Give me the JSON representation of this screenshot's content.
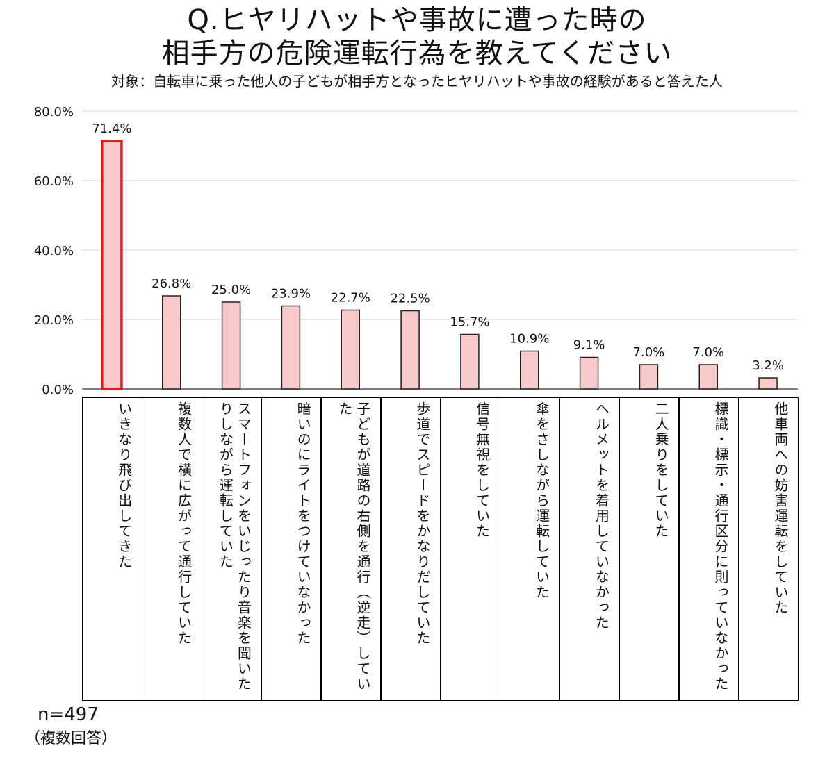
{
  "title_line1": "Q.ヒヤリハットや事故に遭った時の",
  "title_line2": "相手方の危険運転行為を教えてください",
  "subtitle": "対象：自転車に乗った他人の子どもが相手方となったヒヤリハットや事故の経験があると答えた人",
  "sample_size": "n=497",
  "answer_note": "（複数回答）",
  "colors": {
    "bar_fill": "#f7c9c9",
    "bar_stroke": "#222222",
    "highlight_stroke": "#d92020",
    "grid": "#e2e2e2"
  },
  "chart_data": {
    "type": "bar",
    "title": "Q.ヒヤリハットや事故に遭った時の相手方の危険運転行為を教えてください",
    "ylim": [
      0,
      80
    ],
    "yticks": [
      "0.0%",
      "20.0%",
      "40.0%",
      "60.0%",
      "80.0%"
    ],
    "grid": true,
    "categories": [
      "いきなり飛び出してきた",
      "複数人で横に広がって通行していた",
      "スマートフォンをいじったり音楽を聞いたりしながら運転していた",
      "暗いのにライトをつけていなかった",
      "子どもが道路の右側を通行（逆走）していた",
      "歩道でスピードをかなりだしていた",
      "信号無視をしていた",
      "傘をさしながら運転していた",
      "ヘルメットを着用していなかった",
      "二人乗りをしていた",
      "標識・標示・通行区分に則っていなかった",
      "他車両への妨害運転をしていた"
    ],
    "values": [
      71.4,
      26.8,
      25.0,
      23.9,
      22.7,
      22.5,
      15.7,
      10.9,
      9.1,
      7.0,
      7.0,
      3.2
    ],
    "value_labels": [
      "71.4%",
      "26.8%",
      "25.0%",
      "23.9%",
      "22.7%",
      "22.5%",
      "15.7%",
      "10.9%",
      "9.1%",
      "7.0%",
      "7.0%",
      "3.2%"
    ],
    "highlighted_index": 0
  }
}
